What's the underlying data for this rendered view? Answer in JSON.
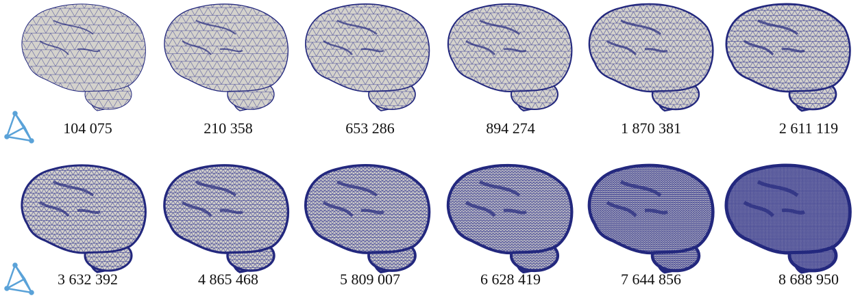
{
  "rows": [
    {
      "labels": [
        "104 075",
        "210 358",
        "653 286",
        "894 274",
        "1 870 381",
        "2 611 119"
      ]
    },
    {
      "labels": [
        "3 632 392",
        "4 865 468",
        "5 809 007",
        "6 628 419",
        "7 644 856",
        "8 688 950"
      ]
    }
  ]
}
